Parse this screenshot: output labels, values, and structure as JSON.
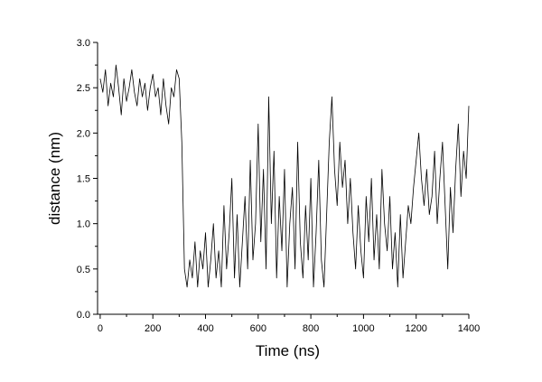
{
  "chart_data": {
    "type": "line",
    "xlabel": "Time (ns)",
    "ylabel": "distance (nm)",
    "xlim": [
      -10,
      1400
    ],
    "ylim": [
      0.0,
      3.0
    ],
    "x_ticks": [
      0,
      200,
      400,
      600,
      800,
      1000,
      1200,
      1400
    ],
    "x_tick_labels": [
      "0",
      "200",
      "400",
      "600",
      "800",
      "1000",
      "1200",
      "1400"
    ],
    "y_ticks": [
      0.0,
      0.5,
      1.0,
      1.5,
      2.0,
      2.5,
      3.0
    ],
    "y_tick_labels": [
      "0.0",
      "0.5",
      "1.0",
      "1.5",
      "2.0",
      "2.5",
      "3.0"
    ],
    "grid": false,
    "line_color": "#000000",
    "series": [
      {
        "x": [
          0,
          10,
          20,
          30,
          40,
          50,
          60,
          70,
          80,
          90,
          100,
          110,
          120,
          130,
          140,
          150,
          160,
          170,
          180,
          190,
          200,
          210,
          220,
          230,
          240,
          250,
          260,
          270,
          280,
          290,
          300,
          310,
          320,
          330,
          340,
          350,
          360,
          370,
          380,
          390,
          400,
          410,
          420,
          430,
          440,
          450,
          460,
          470,
          480,
          490,
          500,
          510,
          520,
          530,
          540,
          550,
          560,
          570,
          580,
          590,
          600,
          610,
          620,
          630,
          640,
          650,
          660,
          670,
          680,
          690,
          700,
          710,
          720,
          730,
          740,
          750,
          760,
          770,
          780,
          790,
          800,
          810,
          820,
          830,
          840,
          850,
          860,
          870,
          880,
          890,
          900,
          910,
          920,
          930,
          940,
          950,
          960,
          970,
          980,
          990,
          1000,
          1010,
          1020,
          1030,
          1040,
          1050,
          1060,
          1070,
          1080,
          1090,
          1100,
          1110,
          1120,
          1130,
          1140,
          1150,
          1160,
          1170,
          1180,
          1190,
          1200,
          1210,
          1220,
          1230,
          1240,
          1250,
          1260,
          1270,
          1280,
          1290,
          1300,
          1310,
          1320,
          1330,
          1340,
          1350,
          1360,
          1370,
          1380,
          1390,
          1400
        ],
        "values": [
          2.6,
          2.45,
          2.7,
          2.3,
          2.55,
          2.4,
          2.75,
          2.5,
          2.2,
          2.6,
          2.35,
          2.5,
          2.7,
          2.45,
          2.3,
          2.6,
          2.4,
          2.55,
          2.25,
          2.5,
          2.65,
          2.4,
          2.5,
          2.2,
          2.6,
          2.3,
          2.1,
          2.5,
          2.4,
          2.7,
          2.6,
          1.9,
          0.5,
          0.3,
          0.6,
          0.4,
          0.8,
          0.3,
          0.7,
          0.5,
          0.9,
          0.3,
          0.6,
          1.0,
          0.4,
          0.7,
          0.3,
          1.2,
          0.5,
          0.9,
          1.5,
          0.4,
          1.1,
          0.3,
          0.8,
          1.3,
          0.5,
          1.7,
          0.6,
          1.0,
          2.1,
          0.8,
          1.6,
          0.5,
          2.4,
          1.0,
          1.8,
          0.4,
          1.3,
          0.7,
          1.6,
          0.3,
          1.0,
          1.4,
          0.5,
          1.9,
          0.8,
          0.4,
          1.2,
          0.6,
          1.5,
          0.3,
          0.9,
          1.7,
          0.6,
          0.3,
          1.1,
          1.9,
          2.4,
          1.6,
          1.2,
          1.9,
          1.4,
          1.7,
          1.0,
          1.5,
          0.9,
          0.5,
          1.2,
          0.7,
          0.4,
          1.3,
          0.8,
          1.5,
          0.6,
          1.1,
          0.5,
          1.6,
          1.0,
          0.7,
          1.3,
          0.5,
          0.9,
          0.3,
          1.1,
          0.4,
          0.8,
          1.2,
          1.0,
          1.4,
          1.7,
          2.0,
          1.5,
          1.2,
          1.6,
          1.1,
          1.3,
          1.8,
          1.0,
          1.5,
          1.9,
          1.2,
          0.5,
          1.4,
          0.9,
          1.6,
          2.1,
          1.3,
          1.8,
          1.5,
          2.3
        ]
      }
    ]
  }
}
